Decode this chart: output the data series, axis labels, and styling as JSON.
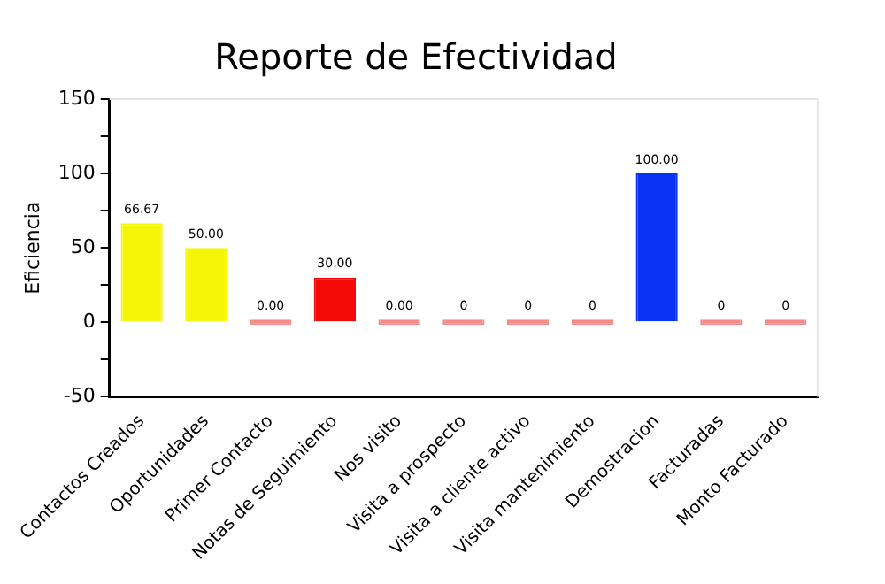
{
  "chart_data": {
    "type": "bar",
    "title": "Reporte de Efectividad",
    "ylabel": "Eficiencia",
    "categories": [
      "Contactos Creados",
      "Oportunidades",
      "Primer Contacto",
      "Notas de Seguimiento",
      "Nos visito",
      "Visita a prospecto",
      "Visita a cliente activo",
      "Visita mantenimiento",
      "Demostracion",
      "Facturadas",
      "Monto Facturado"
    ],
    "values": [
      66.67,
      50,
      0,
      30,
      0,
      0,
      0,
      0,
      100,
      0,
      0
    ],
    "colors": [
      "#f5f50a",
      "#f5f50a",
      "#f48a8a",
      "#f50a0a",
      "#f48a8a",
      "#f48a8a",
      "#f48a8a",
      "#f48a8a",
      "#0a32f5",
      "#f48a8a",
      "#f48a8a"
    ],
    "value_labels": [
      "66.67",
      "50.00",
      "0.00",
      "30.00",
      "0.00",
      "0",
      "0",
      "0",
      "100.00",
      "0",
      "0"
    ],
    "ylim": [
      -50,
      150
    ],
    "yticks": [
      -50,
      {
        "value": -25,
        "label": null
      },
      0,
      {
        "value": 25,
        "label": null
      },
      50,
      {
        "value": 75,
        "label": null
      },
      100,
      {
        "value": 125,
        "label": null
      },
      150
    ],
    "grid": false,
    "legend": false
  }
}
